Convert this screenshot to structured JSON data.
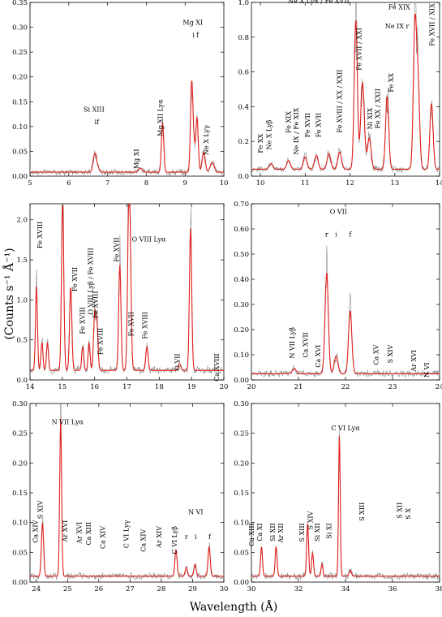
{
  "figure": {
    "ylabel": "(Counts s⁻¹ Å⁻¹)",
    "xlabel": "Wavelength (Å)",
    "colors": {
      "observed": "#8c8c8c",
      "model": "#e0201c",
      "axis": "#000000"
    }
  },
  "chart_data": [
    {
      "type": "line",
      "xlim": [
        5,
        10
      ],
      "ylim": [
        0,
        0.35
      ],
      "xticks": [
        5,
        6,
        7,
        8,
        9,
        10
      ],
      "yticks": [
        0,
        0.05,
        0.1,
        0.15,
        0.2,
        0.25,
        0.3,
        0.35
      ],
      "ytick_labels": [
        "0.00",
        "0.05",
        "0.10",
        "0.15",
        "0.20",
        "0.25",
        "0.30",
        "0.35"
      ],
      "base": 0.008,
      "peaks": [
        [
          6.65,
          0.025,
          0.035
        ],
        [
          6.69,
          0.018,
          0.03
        ],
        [
          6.74,
          0.012,
          0.04
        ],
        [
          7.85,
          0.008,
          0.05
        ],
        [
          8.42,
          0.1,
          0.03
        ],
        [
          9.17,
          0.18,
          0.03
        ],
        [
          9.23,
          0.05,
          0.03
        ],
        [
          9.31,
          0.11,
          0.03
        ],
        [
          9.48,
          0.04,
          0.04
        ],
        [
          9.7,
          0.02,
          0.05
        ]
      ],
      "labels": [
        {
          "text": "Si XIII",
          "x": 6.65,
          "y": 0.13,
          "rot": 0
        },
        {
          "text": "i",
          "x": 6.69,
          "y": 0.105,
          "rot": 0
        },
        {
          "text": "f",
          "x": 6.75,
          "y": 0.105,
          "rot": 0
        },
        {
          "text": "Mg XI",
          "x": 7.8,
          "y": 0.05,
          "rot": -90
        },
        {
          "text": "Mg XII Lyα",
          "x": 8.42,
          "y": 0.15,
          "rot": -90
        },
        {
          "text": "Mg XI",
          "x": 9.2,
          "y": 0.305,
          "rot": 0
        },
        {
          "text": "i",
          "x": 9.22,
          "y": 0.28,
          "rot": 0
        },
        {
          "text": "f",
          "x": 9.32,
          "y": 0.28,
          "rot": 0
        },
        {
          "text": "Ne X Lyγ",
          "x": 9.6,
          "y": 0.098,
          "rot": -90
        }
      ]
    },
    {
      "type": "line",
      "xlim": [
        9.8,
        14
      ],
      "ylim": [
        0,
        1.0
      ],
      "xticks": [
        10,
        11,
        12,
        13,
        14
      ],
      "yticks": [
        0,
        0.2,
        0.4,
        0.6,
        0.8,
        1.0
      ],
      "ytick_labels": [
        "0.0",
        "0.2",
        "0.4",
        "0.6",
        "0.8",
        "1.0"
      ],
      "base": 0.04,
      "peaks": [
        [
          10.24,
          0.03,
          0.04
        ],
        [
          10.63,
          0.05,
          0.04
        ],
        [
          11.0,
          0.07,
          0.04
        ],
        [
          11.25,
          0.08,
          0.04
        ],
        [
          11.53,
          0.09,
          0.04
        ],
        [
          11.77,
          0.1,
          0.04
        ],
        [
          12.13,
          0.86,
          0.035
        ],
        [
          12.28,
          0.5,
          0.04
        ],
        [
          12.43,
          0.18,
          0.04
        ],
        [
          12.83,
          0.42,
          0.035
        ],
        [
          13.45,
          0.82,
          0.035
        ],
        [
          13.52,
          0.48,
          0.035
        ],
        [
          13.82,
          0.38,
          0.035
        ]
      ],
      "labels": [
        {
          "text": "Fe XX",
          "x": 10.05,
          "y": 0.23,
          "rot": -90
        },
        {
          "text": "Ne X Lyβ",
          "x": 10.24,
          "y": 0.31,
          "rot": -90
        },
        {
          "text": "Fe XIX",
          "x": 10.68,
          "y": 0.36,
          "rot": -90
        },
        {
          "text": "Ne IX / Fe XIX",
          "x": 10.85,
          "y": 0.38,
          "rot": -90
        },
        {
          "text": "Fe XVII",
          "x": 11.1,
          "y": 0.35,
          "rot": -90
        },
        {
          "text": "Fe XVII",
          "x": 11.35,
          "y": 0.35,
          "rot": -90
        },
        {
          "text": "Fe XVIII / XX / XXII",
          "x": 11.82,
          "y": 0.6,
          "rot": -90
        },
        {
          "text": "Ne X Lyα / Fe XVII",
          "x": 11.3,
          "y": 0.995,
          "rot": 0
        },
        {
          "text": "Fe XVII / XXI",
          "x": 12.25,
          "y": 0.84,
          "rot": -90
        },
        {
          "text": "Ni XIX",
          "x": 12.5,
          "y": 0.38,
          "rot": -90
        },
        {
          "text": "Fe XX / XXII",
          "x": 12.67,
          "y": 0.49,
          "rot": -90
        },
        {
          "text": "Fe XX",
          "x": 12.97,
          "y": 0.58,
          "rot": -90
        },
        {
          "text": "Fe XIX",
          "x": 13.1,
          "y": 0.96,
          "rot": 0
        },
        {
          "text": "Ne IX r",
          "x": 13.05,
          "y": 0.85,
          "rot": 0
        },
        {
          "text": "Fe XVII / XIX",
          "x": 13.88,
          "y": 0.98,
          "rot": -90
        }
      ]
    },
    {
      "type": "line",
      "xlim": [
        14,
        20
      ],
      "ylim": [
        0,
        2.2
      ],
      "xticks": [
        14,
        15,
        16,
        17,
        18,
        19,
        20
      ],
      "yticks": [
        0,
        0.5,
        1.0,
        1.5,
        2.0
      ],
      "ytick_labels": [
        "0.0",
        "0.5",
        "1.0",
        "1.5",
        "2.0"
      ],
      "base": 0.12,
      "peaks": [
        [
          14.2,
          1.05,
          0.03
        ],
        [
          14.37,
          0.35,
          0.03
        ],
        [
          14.54,
          0.35,
          0.03
        ],
        [
          15.01,
          2.1,
          0.035
        ],
        [
          15.26,
          1.05,
          0.035
        ],
        [
          15.63,
          0.3,
          0.03
        ],
        [
          15.83,
          0.35,
          0.03
        ],
        [
          16.0,
          0.65,
          0.035
        ],
        [
          16.07,
          0.55,
          0.035
        ],
        [
          16.78,
          1.32,
          0.035
        ],
        [
          17.05,
          1.62,
          0.035
        ],
        [
          17.1,
          1.3,
          0.035
        ],
        [
          17.62,
          0.3,
          0.035
        ],
        [
          18.63,
          0.08,
          0.04
        ],
        [
          18.97,
          1.78,
          0.035
        ]
      ],
      "labels": [
        {
          "text": "Fe XVIII",
          "x": 14.38,
          "y": 1.95,
          "rot": -90
        },
        {
          "text": "Fe XVII",
          "x": 15.45,
          "y": 1.38,
          "rot": -90
        },
        {
          "text": "O VIII Lyβ / Fe XVIII",
          "x": 15.95,
          "y": 1.62,
          "rot": -90
        },
        {
          "text": "Fe XVIII",
          "x": 16.1,
          "y": 1.08,
          "rot": -90
        },
        {
          "text": "Fe XVIII",
          "x": 15.7,
          "y": 0.88,
          "rot": -90
        },
        {
          "text": "Fe XVIII",
          "x": 16.25,
          "y": 0.62,
          "rot": -90
        },
        {
          "text": "Fe XVII",
          "x": 16.75,
          "y": 1.75,
          "rot": -90
        },
        {
          "text": "O VIII Lyα",
          "x": 17.68,
          "y": 1.73,
          "rot": 0
        },
        {
          "text": "Fe XVII",
          "x": 17.2,
          "y": 0.82,
          "rot": -90
        },
        {
          "text": "Fe XVIII",
          "x": 17.63,
          "y": 0.82,
          "rot": -90
        },
        {
          "text": "O VII",
          "x": 18.63,
          "y": 0.3,
          "rot": -90
        },
        {
          "text": "Ca XVIII",
          "x": 19.85,
          "y": 0.3,
          "rot": -90
        }
      ]
    },
    {
      "type": "line",
      "xlim": [
        20,
        24
      ],
      "ylim": [
        0,
        0.7
      ],
      "xticks": [
        20,
        21,
        22,
        23,
        24
      ],
      "yticks": [
        0,
        0.1,
        0.2,
        0.3,
        0.4,
        0.5,
        0.6,
        0.7
      ],
      "ytick_labels": [
        "0.00",
        "0.10",
        "0.20",
        "0.30",
        "0.40",
        "0.50",
        "0.60",
        "0.70"
      ],
      "base": 0.025,
      "peaks": [
        [
          20.91,
          0.02,
          0.04
        ],
        [
          21.6,
          0.4,
          0.035
        ],
        [
          21.8,
          0.07,
          0.04
        ],
        [
          22.1,
          0.25,
          0.035
        ]
      ],
      "labels": [
        {
          "text": "O VII",
          "x": 21.85,
          "y": 0.66,
          "rot": 0
        },
        {
          "text": "r",
          "x": 21.6,
          "y": 0.57,
          "rot": 0
        },
        {
          "text": "i",
          "x": 21.8,
          "y": 0.57,
          "rot": 0
        },
        {
          "text": "f",
          "x": 22.1,
          "y": 0.57,
          "rot": 0
        },
        {
          "text": "N VII Lyβ",
          "x": 20.91,
          "y": 0.2,
          "rot": -90
        },
        {
          "text": "Ca XVII",
          "x": 21.2,
          "y": 0.18,
          "rot": -90
        },
        {
          "text": "Ca XVI",
          "x": 21.47,
          "y": 0.13,
          "rot": -90
        },
        {
          "text": "Ca XV",
          "x": 22.7,
          "y": 0.13,
          "rot": -90
        },
        {
          "text": "S XIV",
          "x": 23.0,
          "y": 0.13,
          "rot": -90
        },
        {
          "text": "Ar XVI",
          "x": 23.5,
          "y": 0.11,
          "rot": -90
        },
        {
          "text": "N VI",
          "x": 23.78,
          "y": 0.06,
          "rot": -90
        }
      ]
    },
    {
      "type": "line",
      "xlim": [
        23.8,
        30
      ],
      "ylim": [
        0,
        0.3
      ],
      "xticks": [
        24,
        25,
        26,
        27,
        28,
        29,
        30
      ],
      "yticks": [
        0,
        0.05,
        0.1,
        0.15,
        0.2,
        0.25,
        0.3
      ],
      "ytick_labels": [
        "0.00",
        "0.05",
        "0.10",
        "0.15",
        "0.20",
        "0.25",
        "0.30"
      ],
      "base": 0.01,
      "peaks": [
        [
          24.2,
          0.09,
          0.035
        ],
        [
          24.78,
          0.265,
          0.03
        ],
        [
          28.47,
          0.045,
          0.035
        ],
        [
          28.8,
          0.015,
          0.035
        ],
        [
          29.08,
          0.02,
          0.035
        ],
        [
          29.53,
          0.05,
          0.035
        ]
      ],
      "labels": [
        {
          "text": "Ca XIV",
          "x": 24.05,
          "y": 0.1,
          "rot": -90
        },
        {
          "text": "S XIV",
          "x": 24.2,
          "y": 0.133,
          "rot": -90
        },
        {
          "text": "N VII Lyα",
          "x": 25.0,
          "y": 0.265,
          "rot": 0
        },
        {
          "text": "Ar XVI",
          "x": 25.0,
          "y": 0.1,
          "rot": -90
        },
        {
          "text": "Ar XVI",
          "x": 25.45,
          "y": 0.097,
          "rot": -90
        },
        {
          "text": "Ca XIII",
          "x": 25.75,
          "y": 0.097,
          "rot": -90
        },
        {
          "text": "Ca XIV",
          "x": 26.2,
          "y": 0.09,
          "rot": -90
        },
        {
          "text": "C VI Lyγ",
          "x": 26.95,
          "y": 0.1,
          "rot": -90
        },
        {
          "text": "Ca XIV",
          "x": 27.5,
          "y": 0.085,
          "rot": -90
        },
        {
          "text": "Ar XIV",
          "x": 28.0,
          "y": 0.09,
          "rot": -90
        },
        {
          "text": "C VI Lyβ",
          "x": 28.5,
          "y": 0.09,
          "rot": -90
        },
        {
          "text": "N VI",
          "x": 29.1,
          "y": 0.114,
          "rot": 0
        },
        {
          "text": "r",
          "x": 28.8,
          "y": 0.072,
          "rot": 0
        },
        {
          "text": "i",
          "x": 29.1,
          "y": 0.072,
          "rot": 0
        },
        {
          "text": "f",
          "x": 29.55,
          "y": 0.072,
          "rot": 0
        }
      ]
    },
    {
      "type": "line",
      "xlim": [
        30,
        38
      ],
      "ylim": [
        0,
        0.3
      ],
      "xticks": [
        30,
        32,
        34,
        36,
        38
      ],
      "yticks": [
        0,
        0.05,
        0.1,
        0.15,
        0.2,
        0.25,
        0.3
      ],
      "ytick_labels": [
        "0.00",
        "0.05",
        "0.10",
        "0.15",
        "0.20",
        "0.25",
        "0.30"
      ],
      "base": 0.01,
      "peaks": [
        [
          30.43,
          0.05,
          0.04
        ],
        [
          31.05,
          0.05,
          0.04
        ],
        [
          32.39,
          0.09,
          0.04
        ],
        [
          32.6,
          0.04,
          0.04
        ],
        [
          33.0,
          0.02,
          0.04
        ],
        [
          33.74,
          0.24,
          0.035
        ],
        [
          34.2,
          0.01,
          0.05
        ]
      ],
      "labels": [
        {
          "text": "Ca XIII",
          "x": 30.1,
          "y": 0.095,
          "rot": -90
        },
        {
          "text": "Ca XI",
          "x": 30.45,
          "y": 0.095,
          "rot": -90
        },
        {
          "text": "Si XII",
          "x": 31.0,
          "y": 0.095,
          "rot": -90
        },
        {
          "text": "Ar XII",
          "x": 31.35,
          "y": 0.095,
          "rot": -90
        },
        {
          "text": "S XIII",
          "x": 32.25,
          "y": 0.095,
          "rot": -90
        },
        {
          "text": "S XIV",
          "x": 32.6,
          "y": 0.115,
          "rot": -90
        },
        {
          "text": "Si XII",
          "x": 32.9,
          "y": 0.095,
          "rot": -90
        },
        {
          "text": "Si XI",
          "x": 33.4,
          "y": 0.095,
          "rot": -90
        },
        {
          "text": "C VI Lyα",
          "x": 34.0,
          "y": 0.255,
          "rot": 0
        },
        {
          "text": "S XIII",
          "x": 34.8,
          "y": 0.13,
          "rot": -90
        },
        {
          "text": "S XII",
          "x": 36.4,
          "y": 0.13,
          "rot": -90
        },
        {
          "text": "S X",
          "x": 36.75,
          "y": 0.12,
          "rot": -90
        }
      ]
    }
  ]
}
